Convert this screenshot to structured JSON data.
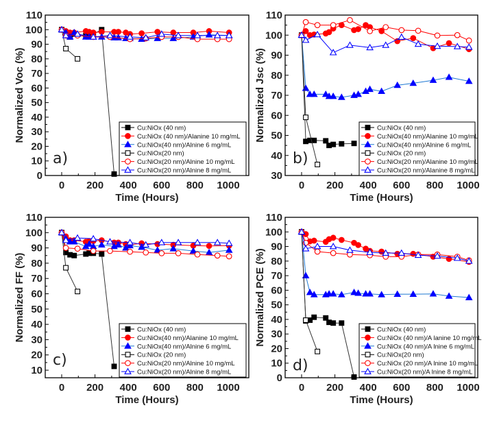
{
  "chart_data": [
    {
      "type": "line",
      "panel_label": "a)",
      "xlabel": "Time (Hours)",
      "ylabel": "Normalized Voc (%)",
      "xlim": [
        -100,
        1100
      ],
      "ylim": [
        0,
        110
      ],
      "xticks": [
        0,
        200,
        400,
        600,
        800,
        1000
      ],
      "yticks": [
        0,
        10,
        20,
        30,
        40,
        50,
        60,
        70,
        80,
        90,
        100,
        110
      ],
      "legend_position": "bottom-right",
      "series": [
        {
          "name": "Cu:NiOx (40 nm)",
          "color": "#000000",
          "marker": "square-filled",
          "x": [
            0,
            25,
            50,
            75,
            145,
            165,
            190,
            240,
            315
          ],
          "y": [
            100,
            97,
            95,
            97,
            96,
            96,
            97,
            100,
            1
          ]
        },
        {
          "name": "Cu:NiOx (40 nm)/Alanine 10 mg/mL",
          "color": "#ff0000",
          "marker": "circle-filled",
          "x": [
            0,
            25,
            50,
            75,
            145,
            165,
            190,
            240,
            315,
            340,
            385,
            410,
            480,
            575,
            670,
            790,
            885,
            1005
          ],
          "y": [
            100,
            99,
            98,
            98,
            99,
            98.5,
            98,
            98.5,
            98.5,
            98.5,
            98,
            97,
            97.5,
            98.5,
            98,
            98,
            99,
            98
          ]
        },
        {
          "name": "Cu:NiOx(40 nm)/Alnine 6 mg/mL",
          "color": "#0000ff",
          "line_color": "#1e78d2",
          "marker": "triangle-filled",
          "x": [
            0,
            25,
            50,
            75,
            145,
            165,
            190,
            240,
            315,
            340,
            385,
            410,
            480,
            575,
            670,
            790,
            885,
            1005
          ],
          "y": [
            100,
            98,
            95,
            98,
            95,
            95,
            95,
            95,
            94.5,
            94.5,
            94,
            94,
            93.5,
            94,
            94,
            95,
            96.5,
            96
          ]
        },
        {
          "name": "Cu:NiOx(20 nm)",
          "color": "#000000",
          "marker": "square-open",
          "x": [
            0,
            25,
            95
          ],
          "y": [
            100,
            87,
            80
          ]
        },
        {
          "name": "Cu:NiOx(20 nm)/Alnine 10 mg/mL",
          "color": "#ff0000",
          "marker": "circle-open",
          "x": [
            0,
            25,
            95,
            190,
            290,
            410,
            505,
            600,
            700,
            815,
            935,
            1005
          ],
          "y": [
            100,
            96,
            96,
            95,
            95,
            93.5,
            94,
            95,
            95,
            93.5,
            93.5,
            93.5
          ]
        },
        {
          "name": "Cu:NiOx(20 nm)/Alnine 8 mg/mL",
          "color": "#0000ff",
          "marker": "triangle-open",
          "x": [
            0,
            25,
            95,
            190,
            290,
            410,
            505,
            600,
            700,
            815,
            935,
            1005
          ],
          "y": [
            100,
            96,
            97,
            95,
            96,
            95,
            94.5,
            97,
            96,
            96,
            96,
            96
          ]
        }
      ]
    },
    {
      "type": "line",
      "panel_label": "b)",
      "xlabel": "Time (Hours)",
      "ylabel": "Normalized Jsc (%)",
      "xlim": [
        -100,
        1100
      ],
      "ylim": [
        30,
        110
      ],
      "xticks": [
        0,
        200,
        400,
        600,
        800,
        1000
      ],
      "yticks": [
        30,
        40,
        50,
        60,
        70,
        80,
        90,
        100,
        110
      ],
      "legend_position": "bottom-right",
      "series": [
        {
          "name": "Cu:NiOx (40 nm)",
          "color": "#000000",
          "marker": "square-filled",
          "x": [
            0,
            25,
            50,
            75,
            145,
            165,
            190,
            240,
            315
          ],
          "y": [
            100,
            47,
            47.5,
            47.5,
            47.3,
            45,
            45.5,
            45.8,
            46
          ]
        },
        {
          "name": "Cu:NiOx(40 nm)/Alanine 10 mg/mL",
          "color": "#ff0000",
          "marker": "circle-filled",
          "x": [
            0,
            25,
            50,
            75,
            145,
            165,
            190,
            240,
            315,
            340,
            385,
            410,
            480,
            575,
            670,
            790,
            885,
            1005
          ],
          "y": [
            100,
            102,
            100,
            100.3,
            100.8,
            101.5,
            103.3,
            105,
            102.5,
            103,
            105,
            104,
            102,
            97,
            98.5,
            93.5,
            96,
            93
          ]
        },
        {
          "name": "Cu:NiOx(40 nm)/Alnine 6 mg/mL",
          "color": "#0000ff",
          "line_color": "#1e78d2",
          "marker": "triangle-filled",
          "x": [
            0,
            25,
            50,
            75,
            145,
            165,
            190,
            240,
            315,
            340,
            385,
            410,
            480,
            575,
            670,
            790,
            885,
            1005
          ],
          "y": [
            100,
            73.5,
            70.5,
            70.5,
            70.5,
            69.5,
            69.5,
            69,
            70,
            70.5,
            72,
            73,
            72,
            75,
            76,
            77.5,
            79,
            77
          ]
        },
        {
          "name": "Cu:NiOx (20 nm)",
          "color": "#000000",
          "marker": "square-open",
          "x": [
            0,
            25,
            95
          ],
          "y": [
            100,
            59,
            35.5
          ]
        },
        {
          "name": "Cu:NiOx(20 nm)/Alanine 10 mg/mL",
          "color": "#ff0000",
          "marker": "circle-open",
          "x": [
            0,
            25,
            95,
            190,
            290,
            410,
            505,
            600,
            700,
            815,
            935,
            1005
          ],
          "y": [
            100,
            106.5,
            105,
            105,
            107.5,
            102,
            104,
            102.5,
            102.2,
            99.8,
            100,
            97.3
          ]
        },
        {
          "name": "Cu:NiOx(20 nm)/Alanine 8 mg/mL",
          "color": "#0000ff",
          "marker": "triangle-open",
          "x": [
            0,
            25,
            95,
            190,
            290,
            410,
            505,
            600,
            700,
            815,
            935,
            1005
          ],
          "y": [
            100,
            97.5,
            100.3,
            91.3,
            95,
            93.8,
            95,
            99,
            95.5,
            94.5,
            94.3,
            94
          ]
        }
      ]
    },
    {
      "type": "line",
      "panel_label": "c)",
      "xlabel": "Time (Hours)",
      "ylabel": "Normalized FF (%)",
      "xlim": [
        -100,
        1100
      ],
      "ylim": [
        5,
        110
      ],
      "xticks": [
        0,
        200,
        400,
        600,
        800,
        1000
      ],
      "yticks": [
        10,
        20,
        30,
        40,
        50,
        60,
        70,
        80,
        90,
        100,
        110
      ],
      "legend_position": "bottom-right",
      "series": [
        {
          "name": "Cu:NiOx (40 nm)",
          "color": "#000000",
          "marker": "square-filled",
          "x": [
            0,
            25,
            50,
            75,
            145,
            165,
            190,
            240,
            315
          ],
          "y": [
            100,
            87,
            85.5,
            85,
            86,
            86.5,
            86.5,
            86,
            12.5
          ]
        },
        {
          "name": "Cu:NiOx(40 nm)/Alanine 10 mg/mL",
          "color": "#ff0000",
          "marker": "circle-filled",
          "x": [
            0,
            25,
            50,
            75,
            145,
            165,
            190,
            240,
            315,
            340,
            385,
            410,
            480,
            575,
            670,
            790,
            885,
            1005
          ],
          "y": [
            100,
            97.5,
            95,
            95,
            94,
            94.5,
            94.5,
            95,
            93.5,
            93.5,
            92.5,
            92,
            93,
            92.5,
            92,
            91.5,
            91.3,
            91.5
          ]
        },
        {
          "name": "Cu:NiOx(40 nm)/Alnine 6 mg/mL",
          "color": "#0000ff",
          "line_color": "#1e78d2",
          "marker": "triangle-filled",
          "x": [
            0,
            25,
            50,
            75,
            145,
            165,
            190,
            240,
            315,
            340,
            385,
            410,
            480,
            575,
            670,
            790,
            885,
            1005
          ],
          "y": [
            100,
            96,
            94,
            94,
            91,
            92.5,
            91,
            92,
            91,
            92,
            90,
            91.5,
            90.5,
            88.5,
            89.5,
            88,
            87,
            88.5
          ]
        },
        {
          "name": "Cu:NiOx (20 nm)",
          "color": "#000000",
          "marker": "square-open",
          "x": [
            0,
            25,
            95
          ],
          "y": [
            100,
            77,
            61.5
          ]
        },
        {
          "name": "Cu:NiOx(20 nm)/Alnine 10 mg/mL",
          "color": "#ff0000",
          "marker": "circle-open",
          "x": [
            0,
            25,
            95,
            190,
            290,
            410,
            505,
            600,
            700,
            815,
            935,
            1005
          ],
          "y": [
            100,
            90,
            89.5,
            88,
            88,
            87.5,
            87,
            86.5,
            86.5,
            85.7,
            85,
            84.5
          ]
        },
        {
          "name": "Cu:NiOx(20 nm)/Alnine 8 mg/mL",
          "color": "#0000ff",
          "marker": "triangle-open",
          "x": [
            0,
            25,
            95,
            190,
            290,
            410,
            505,
            600,
            700,
            815,
            935,
            1005
          ],
          "y": [
            100,
            95,
            96.5,
            96,
            94,
            93.5,
            92,
            93.5,
            93.5,
            93.5,
            93.5,
            93
          ]
        }
      ]
    },
    {
      "type": "line",
      "panel_label": "d)",
      "xlabel": "Time (Hours)",
      "ylabel": "Normalized PCE (%)",
      "xlim": [
        -100,
        1100
      ],
      "ylim": [
        0,
        110
      ],
      "xticks": [
        0,
        200,
        400,
        600,
        800,
        1000
      ],
      "yticks": [
        0,
        10,
        20,
        30,
        40,
        50,
        60,
        70,
        80,
        90,
        100,
        110
      ],
      "legend_position": "bottom-right",
      "series": [
        {
          "name": "Cu:NiOx (40 nm)",
          "color": "#000000",
          "marker": "square-filled",
          "x": [
            0,
            25,
            50,
            75,
            145,
            165,
            190,
            240,
            315
          ],
          "y": [
            100,
            39,
            39.5,
            41.5,
            41,
            38,
            37.5,
            37.5,
            0.5
          ]
        },
        {
          "name": "Cu:NiOx (40 nm)/A lanine 10 mg/mL",
          "color": "#ff0000",
          "marker": "circle-filled",
          "x": [
            0,
            25,
            50,
            75,
            145,
            165,
            190,
            240,
            315,
            340,
            385,
            410,
            480,
            575,
            670,
            790,
            885,
            1005
          ],
          "y": [
            100,
            98.5,
            93.5,
            94,
            93.2,
            95,
            96,
            94.5,
            92.5,
            91,
            88.5,
            87,
            86.5,
            85,
            85,
            83,
            81.5,
            79.5
          ]
        },
        {
          "name": "Cu:NiOx (40 nm)/A lnine 6 mg/mL",
          "color": "#0000ff",
          "line_color": "#1e78d2",
          "marker": "triangle-filled",
          "x": [
            0,
            25,
            50,
            75,
            145,
            165,
            190,
            240,
            315,
            340,
            385,
            410,
            480,
            575,
            670,
            790,
            885,
            1005
          ],
          "y": [
            100,
            70,
            58.5,
            57,
            57,
            57.5,
            57.5,
            57,
            58.5,
            58,
            57.5,
            57.5,
            57,
            57.3,
            57.3,
            57.5,
            56,
            55
          ]
        },
        {
          "name": "Cu:NiOx(20 nm)",
          "color": "#000000",
          "marker": "square-open",
          "x": [
            0,
            25,
            95
          ],
          "y": [
            100,
            39.5,
            18
          ]
        },
        {
          "name": "Cu:NiOx (20 nm)/A lnine 10 mg/mL",
          "color": "#ff0000",
          "marker": "circle-open",
          "x": [
            0,
            25,
            95,
            190,
            290,
            410,
            505,
            600,
            700,
            815,
            935,
            1005
          ],
          "y": [
            100,
            92.5,
            86.5,
            85.5,
            84.5,
            84,
            83,
            83,
            84.5,
            84.5,
            83,
            80.5
          ]
        },
        {
          "name": "Cu:NiOx(20 nm)/A lnine 8 mg/mL",
          "color": "#0000ff",
          "marker": "triangle-open",
          "x": [
            0,
            25,
            95,
            190,
            290,
            410,
            505,
            600,
            700,
            815,
            935,
            1005
          ],
          "y": [
            100,
            88.5,
            90,
            90,
            87.5,
            86,
            85.5,
            85.5,
            84,
            83.5,
            82,
            80
          ]
        }
      ]
    }
  ]
}
